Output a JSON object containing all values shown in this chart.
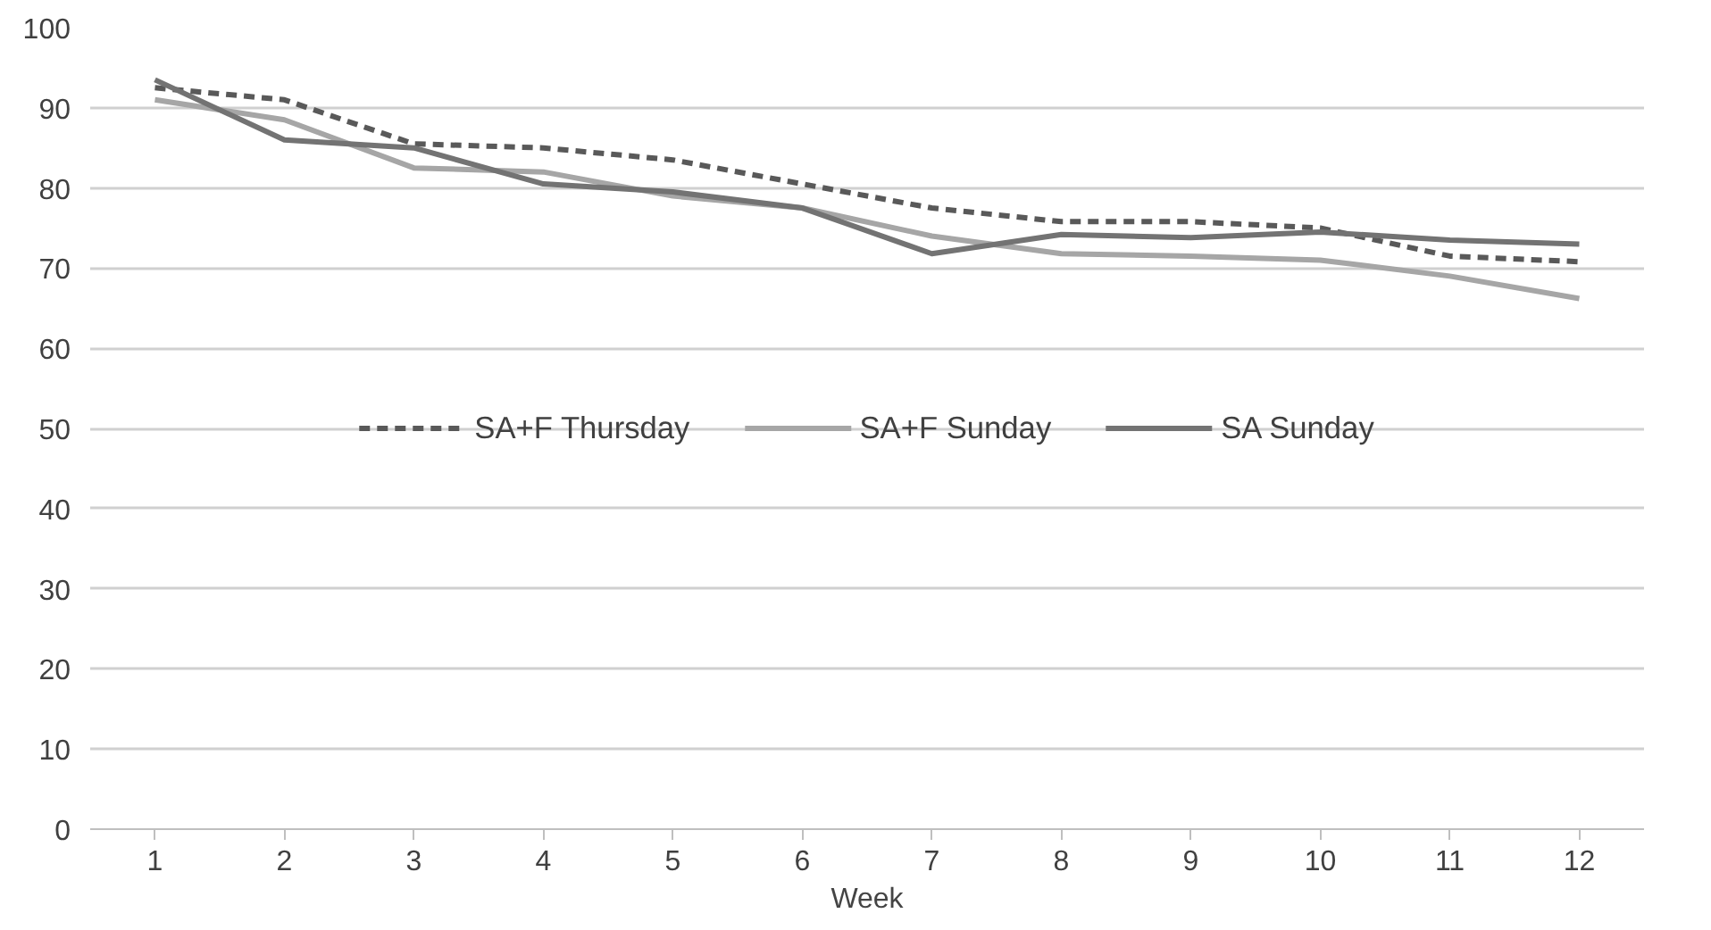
{
  "chart_data": {
    "type": "line",
    "xlabel": "Week",
    "x": [
      1,
      2,
      3,
      4,
      5,
      6,
      7,
      8,
      9,
      10,
      11,
      12
    ],
    "xlim": [
      0.5,
      12.5
    ],
    "xticks": [
      1,
      2,
      3,
      4,
      5,
      6,
      7,
      8,
      9,
      10,
      11,
      12
    ],
    "ylim": [
      0,
      100
    ],
    "yticks": [
      0,
      10,
      20,
      30,
      40,
      50,
      60,
      70,
      80,
      90,
      100
    ],
    "grid": "y",
    "legend": "center",
    "marker": "none",
    "series": [
      {
        "name": "SA+F Thursday",
        "color": "#595959",
        "line_style": "dashed",
        "values": [
          92.5,
          91,
          85.5,
          85,
          83.5,
          80.5,
          77.5,
          75.8,
          75.8,
          75,
          71.5,
          70.8
        ]
      },
      {
        "name": "SA+F Sunday",
        "color": "#a6a6a6",
        "line_style": "solid",
        "values": [
          91,
          88.5,
          82.5,
          82,
          79,
          77.5,
          74,
          71.8,
          71.5,
          71,
          69,
          66.2
        ]
      },
      {
        "name": "SA Sunday",
        "color": "#737373",
        "line_style": "solid",
        "values": [
          93.5,
          86,
          85,
          80.5,
          79.5,
          77.5,
          71.8,
          74.2,
          73.8,
          74.5,
          73.5,
          73
        ]
      }
    ]
  }
}
